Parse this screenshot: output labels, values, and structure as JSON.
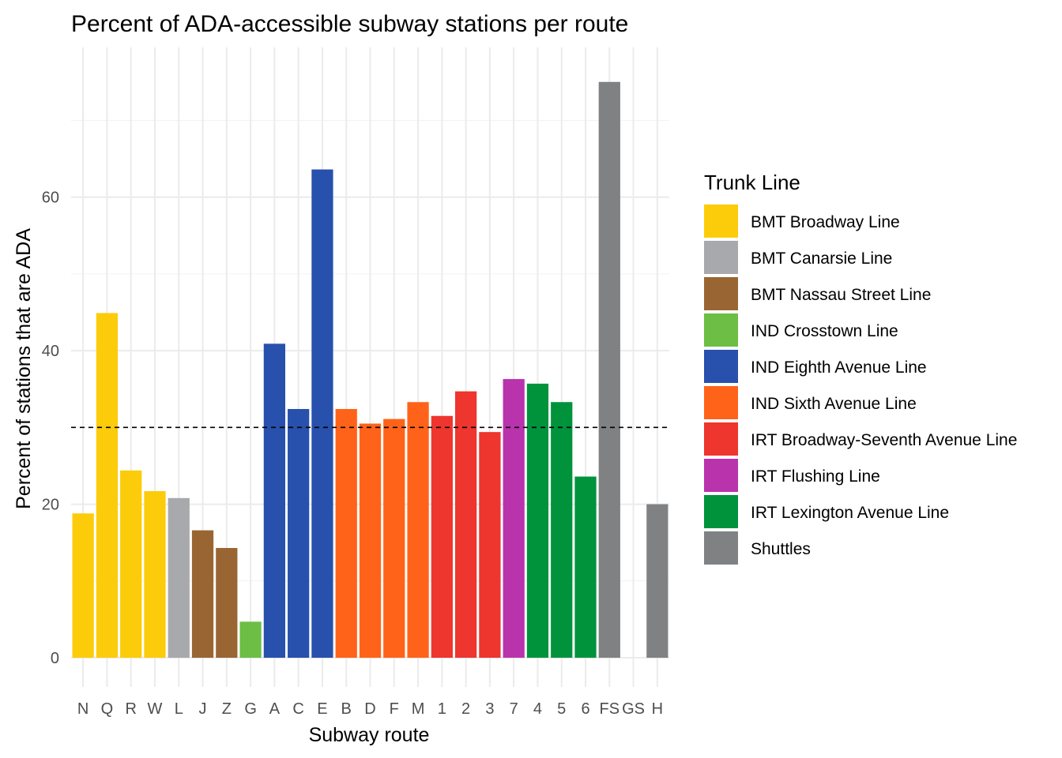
{
  "chart_data": {
    "type": "bar",
    "title": "Percent of ADA-accessible subway stations per route",
    "xlabel": "Subway route",
    "ylabel": "Percent of stations that are ADA",
    "ylim": [
      -3.8,
      79.5
    ],
    "yticks": [
      0,
      20,
      40,
      60
    ],
    "grid": true,
    "reference_line": {
      "y": 30,
      "style": "dashed"
    },
    "categories": [
      "N",
      "Q",
      "R",
      "W",
      "L",
      "J",
      "Z",
      "G",
      "A",
      "C",
      "E",
      "B",
      "D",
      "F",
      "M",
      "1",
      "2",
      "3",
      "7",
      "4",
      "5",
      "6",
      "FS",
      "GS",
      "H"
    ],
    "values": [
      18.8,
      44.9,
      24.4,
      21.7,
      20.8,
      16.6,
      14.3,
      4.7,
      40.9,
      32.4,
      63.6,
      32.4,
      30.5,
      31.1,
      33.3,
      31.5,
      34.7,
      29.4,
      36.3,
      35.7,
      33.3,
      23.6,
      75.0,
      0,
      20.0
    ],
    "bar_groups": [
      "BMT Broadway Line",
      "BMT Broadway Line",
      "BMT Broadway Line",
      "BMT Broadway Line",
      "BMT Canarsie Line",
      "BMT Nassau Street Line",
      "BMT Nassau Street Line",
      "IND Crosstown Line",
      "IND Eighth Avenue Line",
      "IND Eighth Avenue Line",
      "IND Eighth Avenue Line",
      "IND Sixth Avenue Line",
      "IND Sixth Avenue Line",
      "IND Sixth Avenue Line",
      "IND Sixth Avenue Line",
      "IRT Broadway-Seventh Avenue Line",
      "IRT Broadway-Seventh Avenue Line",
      "IRT Broadway-Seventh Avenue Line",
      "IRT Flushing Line",
      "IRT Lexington Avenue Line",
      "IRT Lexington Avenue Line",
      "IRT Lexington Avenue Line",
      "Shuttles",
      "Shuttles",
      "Shuttles"
    ],
    "legend": {
      "title": "Trunk Line",
      "placement": "right",
      "items": [
        {
          "name": "BMT Broadway Line",
          "color": "#FCCC0A"
        },
        {
          "name": "BMT Canarsie Line",
          "color": "#A7A9AC"
        },
        {
          "name": "BMT Nassau Street Line",
          "color": "#996633"
        },
        {
          "name": "IND Crosstown Line",
          "color": "#6CBE45"
        },
        {
          "name": "IND Eighth Avenue Line",
          "color": "#2850AD"
        },
        {
          "name": "IND Sixth Avenue Line",
          "color": "#FF6319"
        },
        {
          "name": "IRT Broadway-Seventh Avenue Line",
          "color": "#EE352E"
        },
        {
          "name": "IRT Flushing Line",
          "color": "#B933AD"
        },
        {
          "name": "IRT Lexington Avenue Line",
          "color": "#00933C"
        },
        {
          "name": "Shuttles",
          "color": "#808183"
        }
      ]
    }
  }
}
